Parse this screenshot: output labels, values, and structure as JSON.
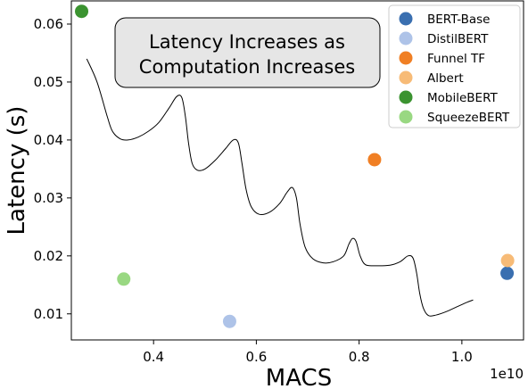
{
  "chart_data": {
    "type": "scatter",
    "xlabel": "MACS",
    "ylabel": "Latency (s)",
    "x_offset_label": "1e10",
    "xlim": [
      0.24,
      1.12
    ],
    "ylim": [
      0.0055,
      0.064
    ],
    "xticks": [
      0.4,
      0.6,
      0.8,
      1.0
    ],
    "xtick_labels": [
      "0.4",
      "0.6",
      "0.8",
      "1.0"
    ],
    "yticks": [
      0.01,
      0.02,
      0.03,
      0.04,
      0.05,
      0.06
    ],
    "ytick_labels": [
      "0.01",
      "0.02",
      "0.03",
      "0.04",
      "0.05",
      "0.06"
    ],
    "grid": false,
    "legend_position": "top-right",
    "series": [
      {
        "name": "BERT-Base",
        "color": "#3a6fb0",
        "x": [
          1.088
        ],
        "y": [
          0.017
        ]
      },
      {
        "name": "DistilBERT",
        "color": "#aec3e8",
        "x": [
          0.548
        ],
        "y": [
          0.0087
        ]
      },
      {
        "name": "Funnel TF",
        "color": "#f07f24",
        "x": [
          0.83
        ],
        "y": [
          0.0366
        ]
      },
      {
        "name": "Albert",
        "color": "#f7bb77",
        "x": [
          1.089
        ],
        "y": [
          0.0192
        ]
      },
      {
        "name": "MobileBERT",
        "color": "#3b9330",
        "x": [
          0.26
        ],
        "y": [
          0.0622
        ]
      },
      {
        "name": "SqueezeBERT",
        "color": "#99d882",
        "x": [
          0.342
        ],
        "y": [
          0.016
        ]
      }
    ],
    "annotation": {
      "lines": [
        "Latency Increases as",
        "Computation Increases"
      ]
    },
    "curve": {
      "color": "#000000",
      "x": [
        0.27,
        0.29,
        0.31,
        0.32,
        0.335,
        0.35,
        0.37,
        0.39,
        0.41,
        0.43,
        0.445,
        0.455,
        0.462,
        0.468,
        0.475,
        0.485,
        0.5,
        0.52,
        0.54,
        0.555,
        0.565,
        0.572,
        0.58,
        0.59,
        0.605,
        0.625,
        0.645,
        0.66,
        0.67,
        0.678,
        0.685,
        0.695,
        0.71,
        0.73,
        0.75,
        0.77,
        0.78,
        0.787,
        0.794,
        0.802,
        0.812,
        0.83,
        0.86,
        0.88,
        0.895,
        0.905,
        0.912,
        0.918,
        0.925,
        0.935,
        0.95,
        0.97,
        0.99,
        1.01,
        1.022
      ],
      "y": [
        0.054,
        0.05,
        0.044,
        0.0415,
        0.0402,
        0.04,
        0.0405,
        0.0415,
        0.043,
        0.0455,
        0.0475,
        0.0473,
        0.044,
        0.0395,
        0.036,
        0.0348,
        0.035,
        0.0365,
        0.0385,
        0.04,
        0.0395,
        0.036,
        0.0315,
        0.0285,
        0.0272,
        0.0275,
        0.029,
        0.031,
        0.0318,
        0.03,
        0.0255,
        0.0215,
        0.0195,
        0.0188,
        0.019,
        0.02,
        0.022,
        0.023,
        0.0225,
        0.02,
        0.0185,
        0.0183,
        0.0184,
        0.019,
        0.02,
        0.0196,
        0.017,
        0.0135,
        0.011,
        0.0097,
        0.0098,
        0.0104,
        0.0112,
        0.012,
        0.0124
      ]
    }
  }
}
